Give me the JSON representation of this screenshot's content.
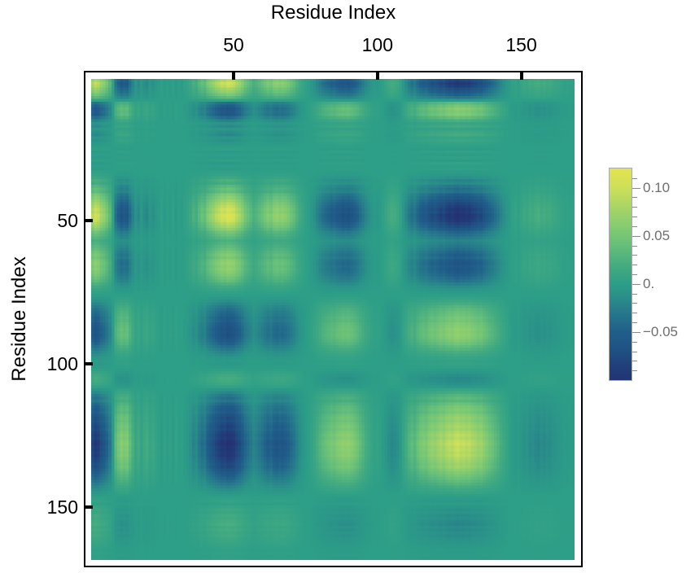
{
  "page": {
    "background": "#ffffff"
  },
  "chart_data": {
    "type": "heatmap",
    "title": "",
    "xlabel": "Residue Index",
    "ylabel": "Residue Index",
    "x_axis": {
      "label": "Residue Index",
      "ticks": [
        50,
        100,
        150
      ],
      "side": "top"
    },
    "y_axis": {
      "label": "Residue Index",
      "ticks": [
        50,
        100,
        150
      ],
      "side": "left"
    },
    "n_residues": 168,
    "value_range": [
      -0.1,
      0.12
    ],
    "matrix_model": "C[i][j] = scale * mode[i] * mode[j] (rank-1 correlation pattern read from the plot)",
    "scale": 0.115,
    "mode_vector": [
      0.78,
      0.92,
      0.85,
      0.7,
      0.62,
      0.48,
      0.32,
      0.05,
      -0.35,
      -0.48,
      -0.58,
      -0.52,
      -0.56,
      -0.38,
      -0.22,
      -0.1,
      -0.16,
      -0.06,
      -0.14,
      -0.18,
      -0.08,
      -0.12,
      -0.06,
      -0.02,
      0.02,
      -0.04,
      0.01,
      -0.03,
      0.02,
      -0.05,
      0.0,
      -0.02,
      0.03,
      0.06,
      0.12,
      0.22,
      0.18,
      0.3,
      0.38,
      0.35,
      0.52,
      0.6,
      0.68,
      0.78,
      0.85,
      0.94,
      0.9,
      1.0,
      0.97,
      0.92,
      0.8,
      0.72,
      0.6,
      0.45,
      0.38,
      0.3,
      0.22,
      0.26,
      0.32,
      0.38,
      0.45,
      0.52,
      0.48,
      0.58,
      0.62,
      0.57,
      0.6,
      0.55,
      0.5,
      0.42,
      0.35,
      0.25,
      0.16,
      0.1,
      0.04,
      0.0,
      -0.06,
      -0.12,
      -0.2,
      -0.28,
      -0.35,
      -0.4,
      -0.44,
      -0.5,
      -0.48,
      -0.55,
      -0.58,
      -0.62,
      -0.6,
      -0.63,
      -0.58,
      -0.52,
      -0.45,
      -0.36,
      -0.28,
      -0.2,
      -0.14,
      -0.08,
      -0.04,
      -0.06,
      -0.02,
      0.02,
      0.08,
      0.14,
      0.18,
      0.16,
      0.12,
      0.04,
      -0.08,
      -0.18,
      -0.28,
      -0.35,
      -0.3,
      -0.42,
      -0.5,
      -0.55,
      -0.52,
      -0.62,
      -0.68,
      -0.65,
      -0.72,
      -0.78,
      -0.74,
      -0.82,
      -0.88,
      -0.84,
      -0.92,
      -0.95,
      -0.88,
      -0.9,
      -0.85,
      -0.88,
      -0.8,
      -0.76,
      -0.7,
      -0.72,
      -0.62,
      -0.55,
      -0.48,
      -0.42,
      -0.35,
      -0.28,
      -0.2,
      -0.14,
      -0.08,
      -0.02,
      0.03,
      0.06,
      0.02,
      0.08,
      0.12,
      0.1,
      0.16,
      0.14,
      0.18,
      0.2,
      0.15,
      0.18,
      0.14,
      0.16,
      0.12,
      0.1,
      0.08,
      0.05,
      0.03,
      0.04,
      0.02,
      0.03
    ],
    "colormap_stops": [
      {
        "v": -0.115,
        "c": "#272b6f"
      },
      {
        "v": -0.09,
        "c": "#213c79"
      },
      {
        "v": -0.07,
        "c": "#1f5183"
      },
      {
        "v": -0.05,
        "c": "#205f8a"
      },
      {
        "v": -0.03,
        "c": "#26798b"
      },
      {
        "v": -0.01,
        "c": "#2b9489"
      },
      {
        "v": 0.0,
        "c": "#2d9e87"
      },
      {
        "v": 0.02,
        "c": "#46ac80"
      },
      {
        "v": 0.04,
        "c": "#66bf7a"
      },
      {
        "v": 0.06,
        "c": "#86cc71"
      },
      {
        "v": 0.08,
        "c": "#a8d565"
      },
      {
        "v": 0.1,
        "c": "#cde05a"
      },
      {
        "v": 0.12,
        "c": "#e3e44e"
      }
    ],
    "colorbar": {
      "range": [
        -0.1,
        0.12
      ],
      "tick_labels": [
        {
          "value": 0.1,
          "text": "0.10"
        },
        {
          "value": 0.05,
          "text": "0.05"
        },
        {
          "value": 0.0,
          "text": "0."
        },
        {
          "value": -0.05,
          "text": "−0.05"
        }
      ],
      "minor_tick_step": 0.01,
      "label_color": "#6e6e6e"
    }
  }
}
